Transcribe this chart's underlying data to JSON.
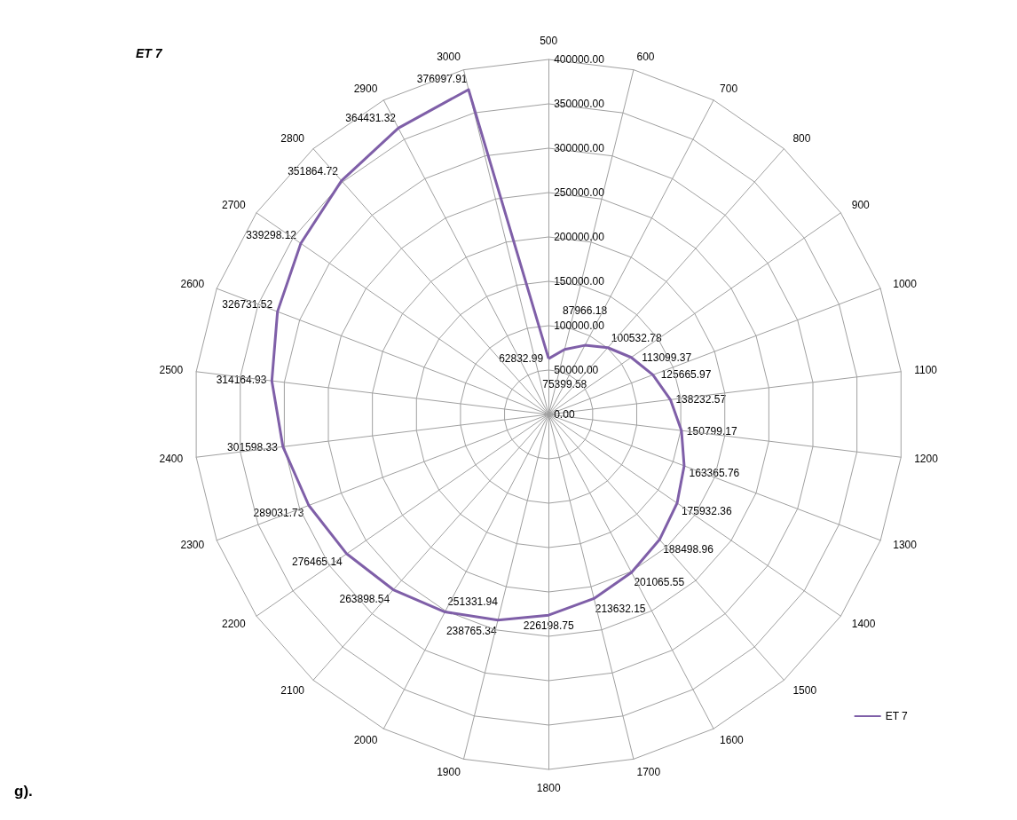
{
  "chart_data": {
    "type": "radar",
    "title": "ET 7",
    "annotations": [
      "g)."
    ],
    "categories": [
      "500",
      "600",
      "700",
      "800",
      "900",
      "1000",
      "1100",
      "1200",
      "1300",
      "1400",
      "1500",
      "1600",
      "1700",
      "1800",
      "1900",
      "2000",
      "2100",
      "2200",
      "2300",
      "2400",
      "2500",
      "2600",
      "2700",
      "2800",
      "2900",
      "3000"
    ],
    "series": [
      {
        "name": "ET 7",
        "color": "#7f5fa8",
        "values": [
          62832.99,
          75399.58,
          87966.18,
          100532.78,
          113099.37,
          125665.97,
          138232.57,
          150799.17,
          163365.76,
          175932.36,
          188498.96,
          201065.55,
          213632.15,
          226198.75,
          238765.34,
          251331.94,
          263898.54,
          276465.14,
          289031.73,
          301598.33,
          314164.93,
          326731.52,
          339298.12,
          351864.72,
          364431.32,
          376997.91
        ]
      }
    ],
    "ylim": [
      0,
      400000
    ],
    "yticks": [
      {
        "value": 0,
        "label": "0.00"
      },
      {
        "value": 50000,
        "label": "50000.00"
      },
      {
        "value": 100000,
        "label": "100000.00"
      },
      {
        "value": 150000,
        "label": "150000.00"
      },
      {
        "value": 200000,
        "label": "200000.00"
      },
      {
        "value": 250000,
        "label": "250000.00"
      },
      {
        "value": 300000,
        "label": "300000.00"
      },
      {
        "value": 350000,
        "label": "350000.00"
      },
      {
        "value": 400000,
        "label": "400000.00"
      }
    ],
    "data_labels": true,
    "legend": "bottom right",
    "grid": true,
    "marker": "none",
    "line_style": "solid"
  }
}
